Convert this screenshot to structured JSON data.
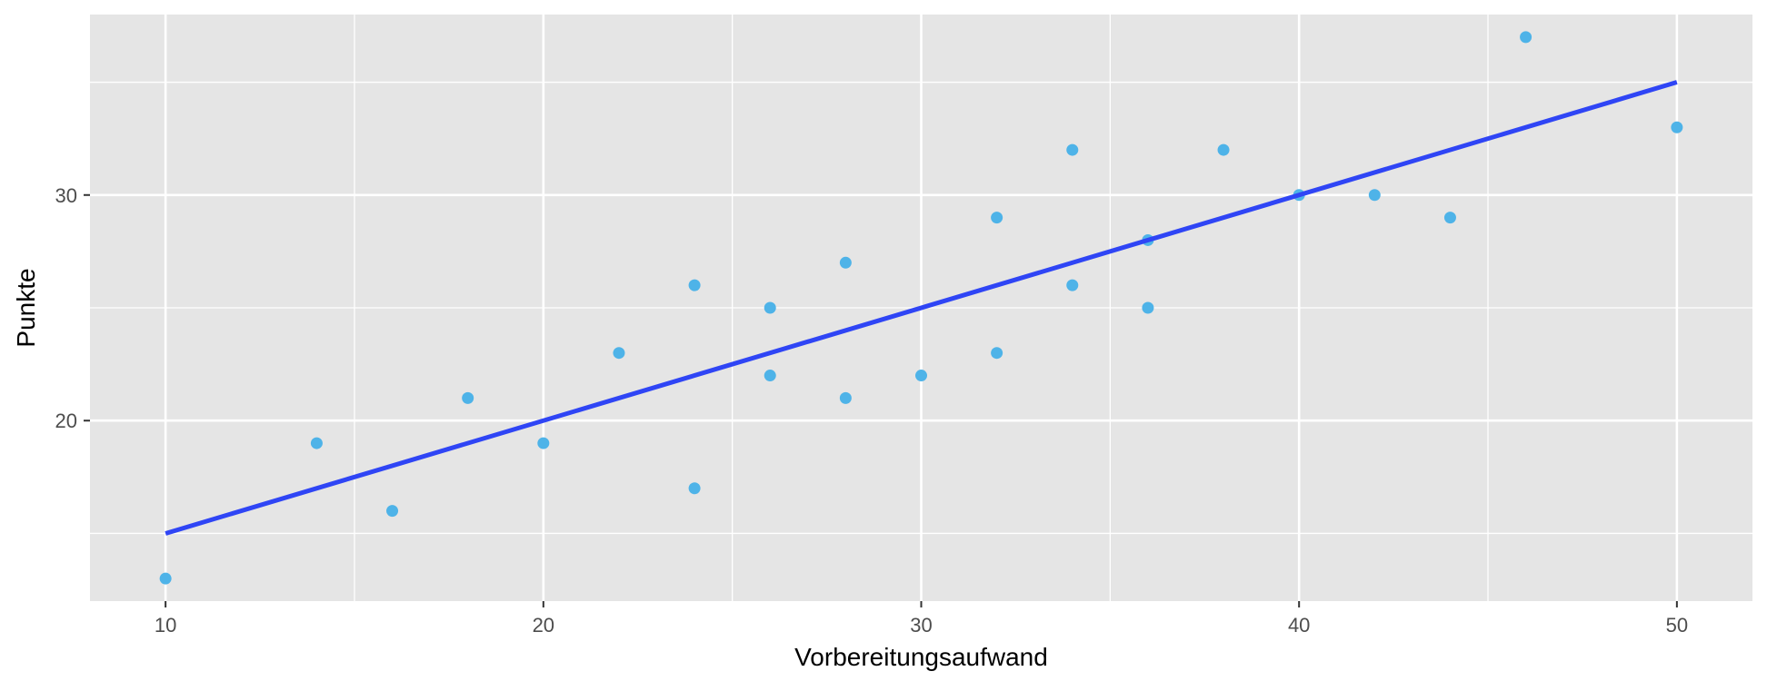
{
  "chart_data": {
    "type": "scatter",
    "title": "",
    "xlabel": "Vorbereitungsaufwand",
    "ylabel": "Punkte",
    "xlim": [
      8,
      52
    ],
    "ylim": [
      12,
      38
    ],
    "x_ticks": [
      10,
      20,
      30,
      40,
      50
    ],
    "x_minor_ticks": [
      15,
      25,
      35,
      45
    ],
    "y_ticks": [
      20,
      30
    ],
    "y_minor_ticks": [
      15,
      25,
      35
    ],
    "x_tick_labels": [
      "10",
      "20",
      "30",
      "40",
      "50"
    ],
    "y_tick_labels": [
      "20",
      "30"
    ],
    "grid": true,
    "legend": "none",
    "colors": {
      "panel_background": "#e5e5e5",
      "grid": "#ffffff",
      "points": "#4eb3e8",
      "regression_line": "#2f45f5",
      "tick_label": "#4d4d4d"
    },
    "series": [
      {
        "points": [
          [
            10,
            13
          ],
          [
            14,
            19
          ],
          [
            16,
            16
          ],
          [
            18,
            21
          ],
          [
            20,
            19
          ],
          [
            22,
            23
          ],
          [
            24,
            17
          ],
          [
            24,
            26
          ],
          [
            26,
            22
          ],
          [
            26,
            25
          ],
          [
            28,
            21
          ],
          [
            28,
            27
          ],
          [
            30,
            22
          ],
          [
            32,
            23
          ],
          [
            32,
            29
          ],
          [
            34,
            26
          ],
          [
            34,
            32
          ],
          [
            36,
            25
          ],
          [
            36,
            28
          ],
          [
            38,
            32
          ],
          [
            40,
            30
          ],
          [
            42,
            30
          ],
          [
            44,
            29
          ],
          [
            46,
            37
          ],
          [
            50,
            33
          ]
        ]
      }
    ],
    "regression_line": {
      "from": [
        10,
        15
      ],
      "to": [
        50,
        35
      ]
    }
  }
}
